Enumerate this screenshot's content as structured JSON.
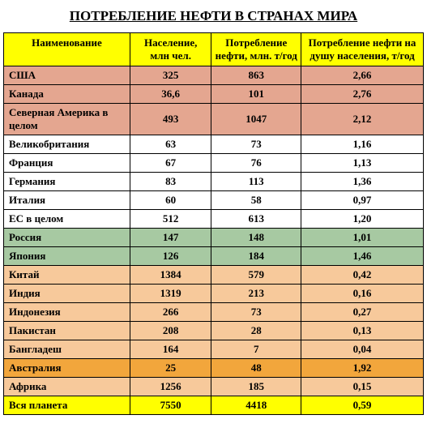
{
  "title": "ПОТРЕБЛЕНИЕ НЕФТИ В СТРАНАХ МИРА",
  "columns": [
    "Наименование",
    "Население, млн чел.",
    "Потребление нефти, млн. т/год",
    "Потребление нефти на душу населения, т/год"
  ],
  "row_colors": {
    "white": "#ffffff",
    "salmon": "#e4a690",
    "green": "#a7c9a2",
    "peach": "#f7c99b",
    "orange": "#f2a63c",
    "yellow": "#ffff00"
  },
  "rows": [
    {
      "name": "США",
      "pop": "325",
      "cons": "863",
      "percap": "2,66",
      "color": "salmon"
    },
    {
      "name": "Канада",
      "pop": "36,6",
      "cons": "101",
      "percap": "2,76",
      "color": "salmon"
    },
    {
      "name": "Северная Америка в целом",
      "pop": "493",
      "cons": "1047",
      "percap": "2,12",
      "color": "salmon"
    },
    {
      "name": "Великобритания",
      "pop": "63",
      "cons": "73",
      "percap": "1,16",
      "color": "white"
    },
    {
      "name": "Франция",
      "pop": "67",
      "cons": "76",
      "percap": "1,13",
      "color": "white"
    },
    {
      "name": "Германия",
      "pop": "83",
      "cons": "113",
      "percap": "1,36",
      "color": "white"
    },
    {
      "name": "Италия",
      "pop": "60",
      "cons": "58",
      "percap": "0,97",
      "color": "white"
    },
    {
      "name": "ЕС в целом",
      "pop": "512",
      "cons": "613",
      "percap": "1,20",
      "color": "white"
    },
    {
      "name": "Россия",
      "pop": "147",
      "cons": "148",
      "percap": "1,01",
      "color": "green"
    },
    {
      "name": "Япония",
      "pop": "126",
      "cons": "184",
      "percap": "1,46",
      "color": "green"
    },
    {
      "name": "Китай",
      "pop": "1384",
      "cons": "579",
      "percap": "0,42",
      "color": "peach"
    },
    {
      "name": "Индия",
      "pop": "1319",
      "cons": "213",
      "percap": "0,16",
      "color": "peach"
    },
    {
      "name": "Индонезия",
      "pop": "266",
      "cons": "73",
      "percap": "0,27",
      "color": "peach"
    },
    {
      "name": "Пакистан",
      "pop": "208",
      "cons": "28",
      "percap": "0,13",
      "color": "peach"
    },
    {
      "name": "Бангладеш",
      "pop": "164",
      "cons": "7",
      "percap": "0,04",
      "color": "peach"
    },
    {
      "name": "Австралия",
      "pop": "25",
      "cons": "48",
      "percap": "1,92",
      "color": "orange"
    },
    {
      "name": "Африка",
      "pop": "1256",
      "cons": "185",
      "percap": "0,15",
      "color": "peach"
    },
    {
      "name": "Вся планета",
      "pop": "7550",
      "cons": "4418",
      "percap": "0,59",
      "color": "yellow"
    }
  ]
}
